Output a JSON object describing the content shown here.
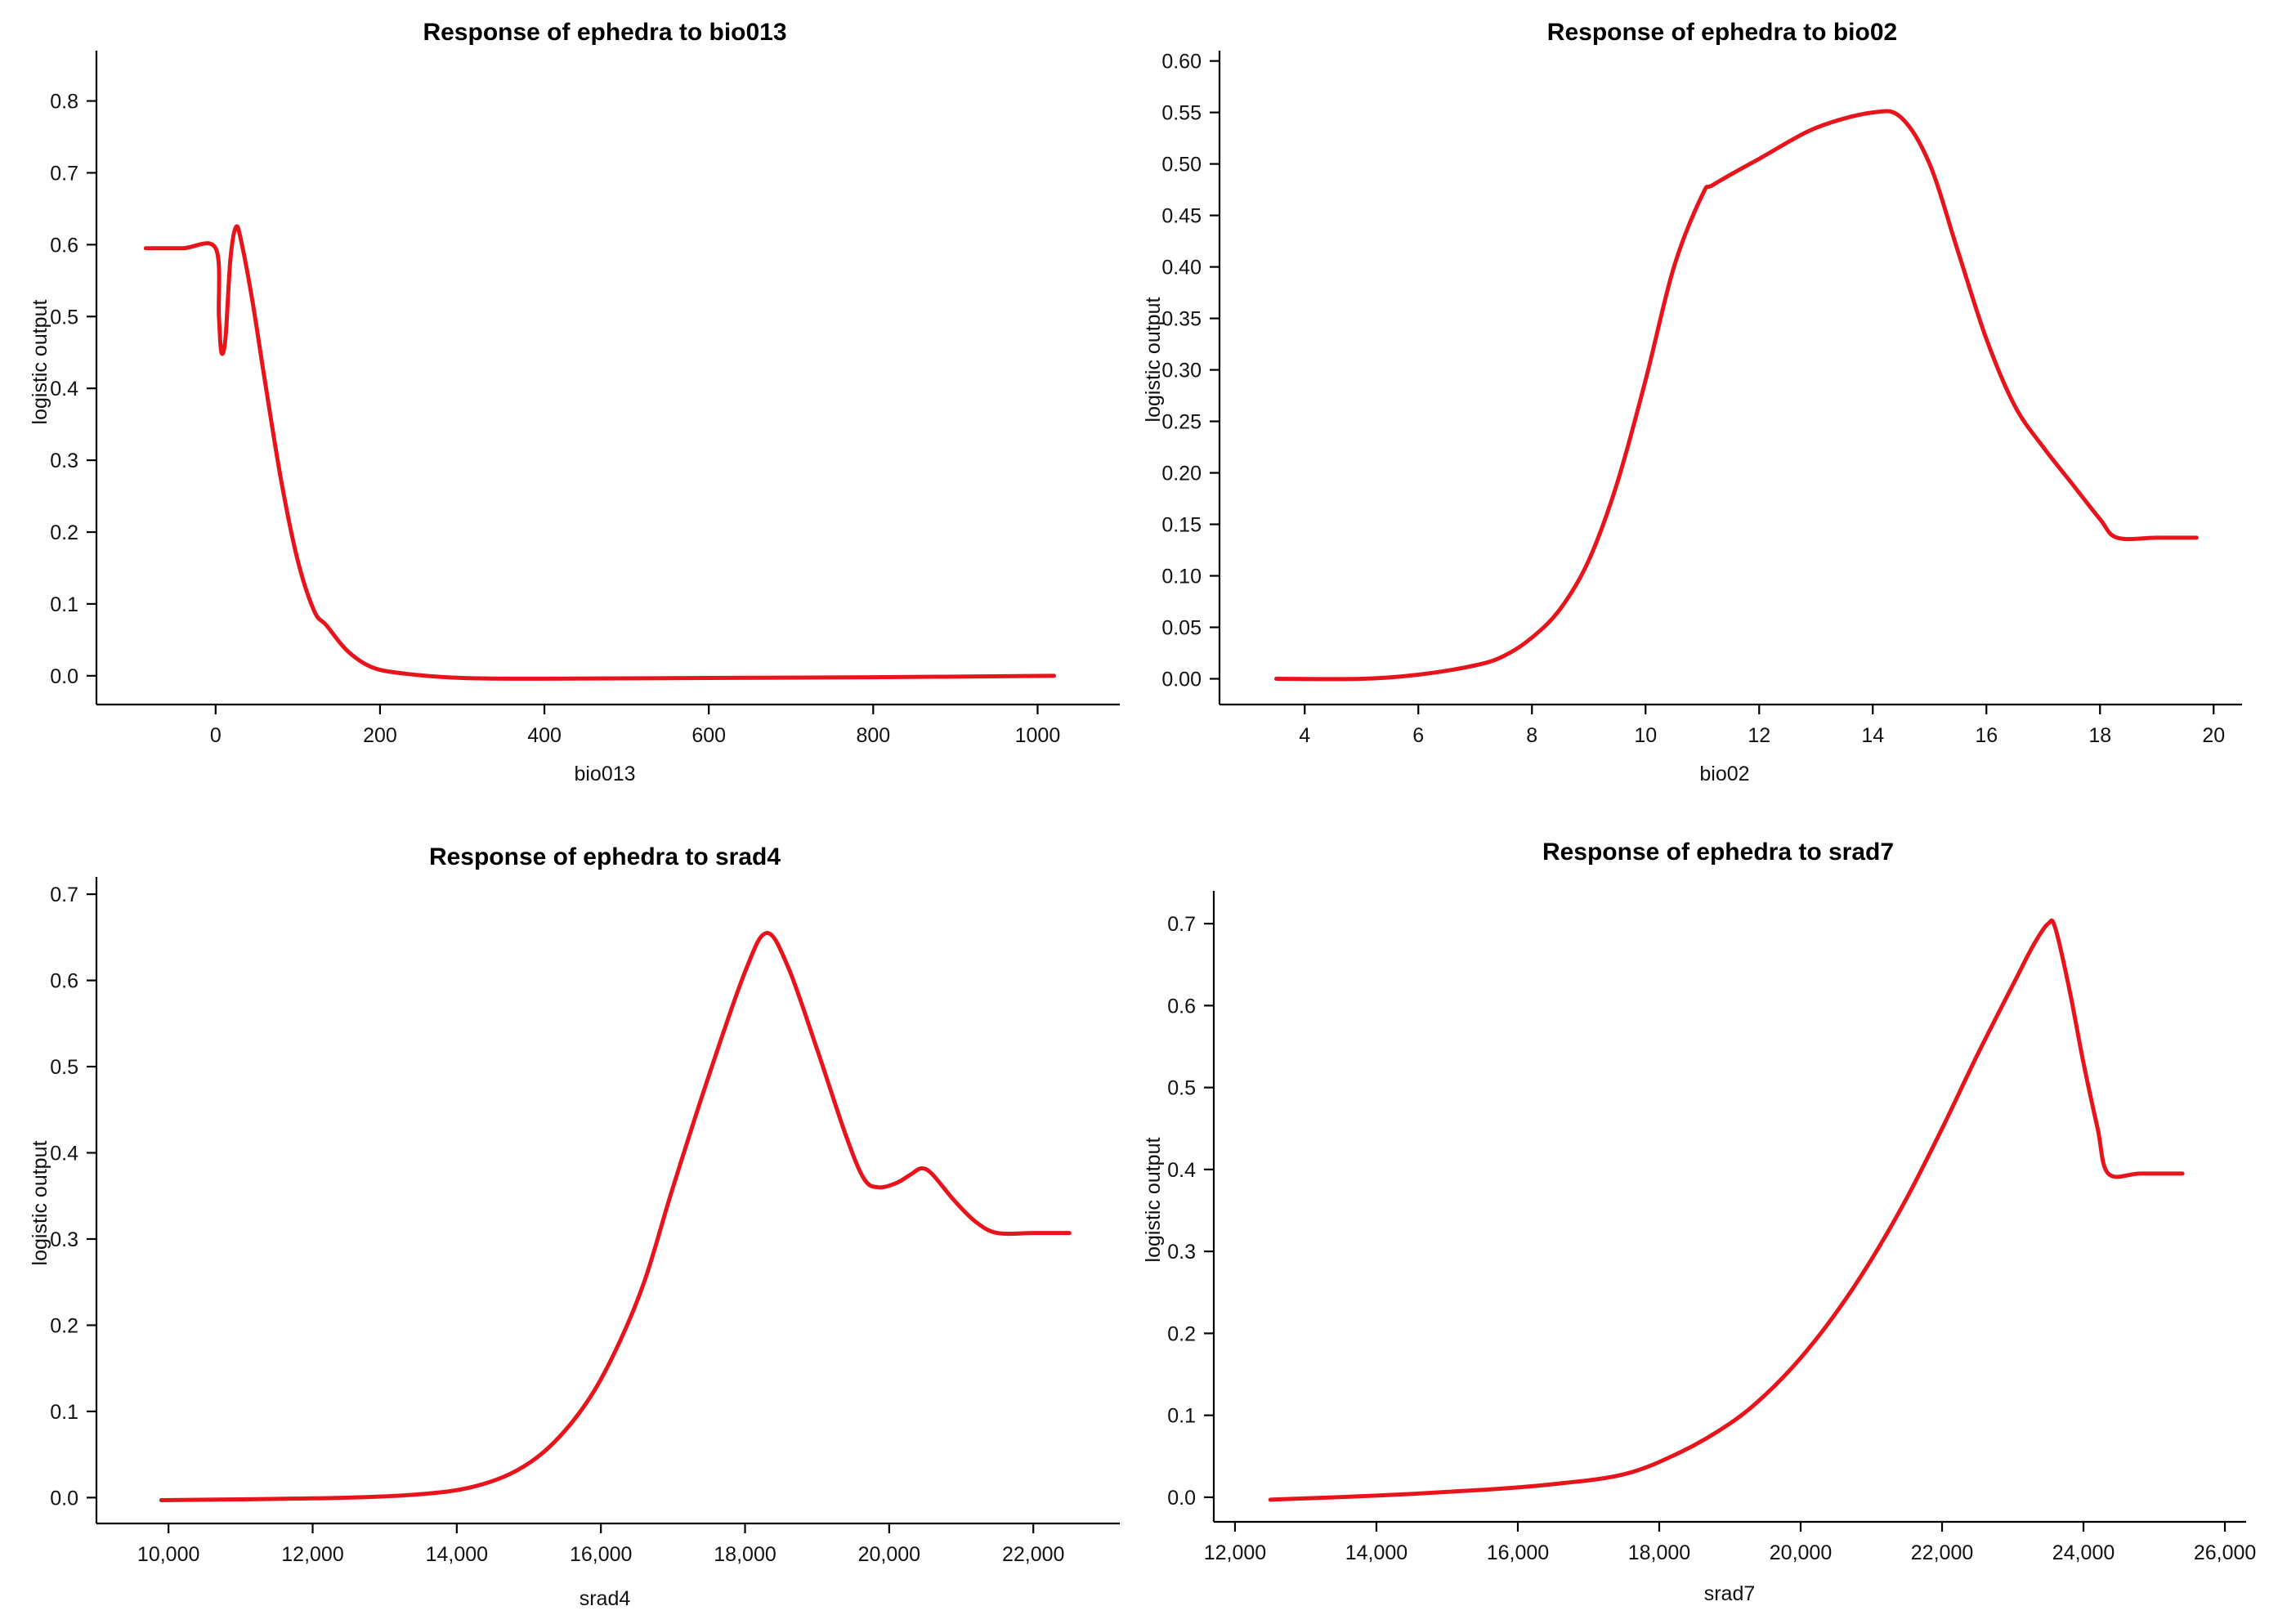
{
  "figure": {
    "colors": {
      "curve": "#e8141c",
      "axis": "#000000",
      "text": "#111111"
    }
  },
  "chart_data": [
    {
      "type": "line",
      "title": "Response of ephedra to bio013",
      "xlabel": "bio013",
      "ylabel": "logistic output",
      "xlim": [
        -145,
        1100
      ],
      "ylim": [
        -0.04,
        0.87
      ],
      "xticks": [
        0,
        200,
        400,
        600,
        800,
        1000
      ],
      "xtick_labels": [
        "0",
        "200",
        "400",
        "600",
        "800",
        "1000"
      ],
      "yticks": [
        0.0,
        0.1,
        0.2,
        0.3,
        0.4,
        0.5,
        0.6,
        0.7,
        0.8
      ],
      "ytick_labels": [
        "0.0",
        "0.1",
        "0.2",
        "0.3",
        "0.4",
        "0.5",
        "0.6",
        "0.7",
        "0.8"
      ],
      "series": [
        {
          "name": "ephedra",
          "x": [
            -85,
            -40,
            0,
            4,
            7,
            12,
            18,
            25,
            32,
            45,
            60,
            80,
            100,
            120,
            135,
            160,
            190,
            230,
            300,
            400,
            600,
            800,
            1020
          ],
          "y": [
            0.595,
            0.595,
            0.595,
            0.5,
            0.45,
            0.47,
            0.58,
            0.625,
            0.6,
            0.52,
            0.41,
            0.27,
            0.16,
            0.09,
            0.07,
            0.035,
            0.012,
            0.003,
            -0.003,
            -0.004,
            -0.003,
            -0.002,
            0.0
          ]
        }
      ]
    },
    {
      "type": "line",
      "title": "Response of ephedra to bio02",
      "xlabel": "bio02",
      "ylabel": "logistic output",
      "xlim": [
        2.5,
        20.5
      ],
      "ylim": [
        -0.025,
        0.61
      ],
      "xticks": [
        4,
        6,
        8,
        10,
        12,
        14,
        16,
        18,
        20
      ],
      "xtick_labels": [
        "4",
        "6",
        "8",
        "10",
        "12",
        "14",
        "16",
        "18",
        "20"
      ],
      "yticks": [
        0.0,
        0.05,
        0.1,
        0.15,
        0.2,
        0.25,
        0.3,
        0.35,
        0.4,
        0.45,
        0.5,
        0.55,
        0.6
      ],
      "ytick_labels": [
        "0.00",
        "0.05",
        "0.10",
        "0.15",
        "0.20",
        "0.25",
        "0.30",
        "0.35",
        "0.40",
        "0.45",
        "0.50",
        "0.55",
        "0.60"
      ],
      "series": [
        {
          "name": "ephedra",
          "x": [
            3.5,
            5,
            6,
            7,
            7.5,
            8,
            8.5,
            9,
            9.5,
            10,
            10.5,
            11,
            11.2,
            12,
            13,
            14,
            14.5,
            15,
            15.5,
            16,
            16.5,
            17,
            17.5,
            18,
            18.3,
            19,
            19.7
          ],
          "y": [
            0.0,
            0.0,
            0.004,
            0.013,
            0.022,
            0.04,
            0.068,
            0.115,
            0.19,
            0.29,
            0.4,
            0.47,
            0.48,
            0.505,
            0.535,
            0.55,
            0.545,
            0.5,
            0.415,
            0.33,
            0.265,
            0.225,
            0.19,
            0.155,
            0.137,
            0.137,
            0.137
          ]
        }
      ]
    },
    {
      "type": "line",
      "title": "Response of ephedra to srad4",
      "xlabel": "srad4",
      "ylabel": "logistic output",
      "xlim": [
        9000,
        23200
      ],
      "ylim": [
        -0.03,
        0.72
      ],
      "xticks": [
        10000,
        12000,
        14000,
        16000,
        18000,
        20000,
        22000
      ],
      "xtick_labels": [
        "10,000",
        "12,000",
        "14,000",
        "16,000",
        "18,000",
        "20,000",
        "22,000"
      ],
      "yticks": [
        0.0,
        0.1,
        0.2,
        0.3,
        0.4,
        0.5,
        0.6,
        0.7
      ],
      "ytick_labels": [
        "0.0",
        "0.1",
        "0.2",
        "0.3",
        "0.4",
        "0.5",
        "0.6",
        "0.7"
      ],
      "series": [
        {
          "name": "ephedra",
          "x": [
            9900,
            11000,
            12500,
            13500,
            14200,
            14800,
            15300,
            15800,
            16200,
            16600,
            17000,
            17500,
            18000,
            18300,
            18600,
            19000,
            19400,
            19650,
            19850,
            20100,
            20300,
            20450,
            20600,
            20900,
            21200,
            21500,
            22000,
            22500
          ],
          "y": [
            -0.003,
            -0.002,
            0.0,
            0.004,
            0.012,
            0.03,
            0.06,
            0.11,
            0.17,
            0.25,
            0.36,
            0.49,
            0.61,
            0.655,
            0.615,
            0.52,
            0.42,
            0.37,
            0.36,
            0.365,
            0.375,
            0.382,
            0.375,
            0.345,
            0.32,
            0.307,
            0.307,
            0.307
          ]
        }
      ]
    },
    {
      "type": "line",
      "title": "Response of ephedra to srad7",
      "xlabel": "srad7",
      "ylabel": "logistic output",
      "xlim": [
        11700,
        26300
      ],
      "ylim": [
        -0.03,
        0.74
      ],
      "xticks": [
        12000,
        14000,
        16000,
        18000,
        20000,
        22000,
        24000,
        26000
      ],
      "xtick_labels": [
        "12,000",
        "14,000",
        "16,000",
        "18,000",
        "20,000",
        "22,000",
        "24,000",
        "26,000"
      ],
      "yticks": [
        0.0,
        0.1,
        0.2,
        0.3,
        0.4,
        0.5,
        0.6,
        0.7
      ],
      "ytick_labels": [
        "0.0",
        "0.1",
        "0.2",
        "0.3",
        "0.4",
        "0.5",
        "0.6",
        "0.7"
      ],
      "series": [
        {
          "name": "ephedra",
          "x": [
            12500,
            14000,
            15500,
            16500,
            17500,
            18300,
            19000,
            19500,
            20000,
            20500,
            21000,
            21500,
            22000,
            22500,
            23000,
            23300,
            23500,
            23600,
            23800,
            24000,
            24200,
            24350,
            24800,
            25400
          ],
          "y": [
            -0.003,
            0.002,
            0.009,
            0.016,
            0.028,
            0.055,
            0.09,
            0.125,
            0.17,
            0.225,
            0.29,
            0.365,
            0.45,
            0.54,
            0.625,
            0.675,
            0.7,
            0.695,
            0.62,
            0.53,
            0.45,
            0.395,
            0.395,
            0.395
          ]
        }
      ]
    }
  ]
}
